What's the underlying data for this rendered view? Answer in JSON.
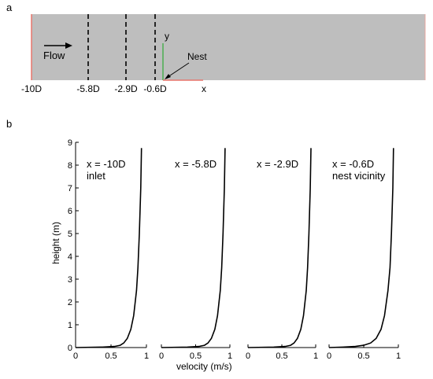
{
  "panel_a": {
    "label": "a",
    "flow_label": "Flow",
    "nest_label": "Nest",
    "axis_y_label": "y",
    "axis_x_label": "x",
    "colors": {
      "domain": "#bebebe",
      "dash": "#000000",
      "inlet": "#e8756b",
      "y_axis": "#4caf50",
      "x_axis": "#e8756b"
    },
    "sections": [
      {
        "id": "s1",
        "x_label": "-10D"
      },
      {
        "id": "s2",
        "x_label": "-5.8D"
      },
      {
        "id": "s3",
        "x_label": "-2.9D"
      },
      {
        "id": "s4",
        "x_label": "-0.6D"
      }
    ]
  },
  "panel_b": {
    "label": "b"
  },
  "chart_data": {
    "type": "line",
    "ylabel": "height (m)",
    "xlabel": "velocity (m/s)",
    "ylim": [
      0,
      9
    ],
    "yticks": [
      "0",
      "1",
      "2",
      "3",
      "4",
      "5",
      "6",
      "7",
      "8",
      "9"
    ],
    "xticks": [
      "0",
      "0.5",
      "1"
    ],
    "panels": [
      {
        "title_lines": [
          "x = -10D",
          "inlet"
        ],
        "xlim": [
          0,
          1
        ],
        "series": [
          {
            "x": [
              0,
              0.38,
              0.55,
              0.63,
              0.68,
              0.73,
              0.78,
              0.82,
              0.86,
              0.88,
              0.9,
              0.92,
              0.93
            ],
            "y": [
              0,
              0.02,
              0.05,
              0.1,
              0.2,
              0.4,
              0.8,
              1.4,
              2.5,
              3.5,
              5.0,
              7.0,
              8.75
            ]
          }
        ]
      },
      {
        "title_lines": [
          "x = -5.8D"
        ],
        "xlim": [
          0,
          1
        ],
        "series": [
          {
            "x": [
              0,
              0.38,
              0.55,
              0.63,
              0.68,
              0.73,
              0.78,
              0.82,
              0.86,
              0.88,
              0.9,
              0.92,
              0.93
            ],
            "y": [
              0,
              0.02,
              0.05,
              0.1,
              0.2,
              0.4,
              0.8,
              1.4,
              2.5,
              3.5,
              5.0,
              7.0,
              8.75
            ]
          }
        ]
      },
      {
        "title_lines": [
          "x = -2.9D"
        ],
        "xlim": [
          0,
          1
        ],
        "series": [
          {
            "x": [
              0,
              0.38,
              0.55,
              0.63,
              0.68,
              0.73,
              0.78,
              0.82,
              0.86,
              0.88,
              0.9,
              0.92,
              0.93
            ],
            "y": [
              0,
              0.02,
              0.05,
              0.1,
              0.2,
              0.4,
              0.8,
              1.4,
              2.5,
              3.5,
              5.0,
              7.0,
              8.75
            ]
          }
        ]
      },
      {
        "title_lines": [
          "x = -0.6D",
          "nest vicinity"
        ],
        "xlim": [
          0,
          1
        ],
        "series": [
          {
            "x": [
              0,
              0.2,
              0.38,
              0.5,
              0.6,
              0.68,
              0.75,
              0.8,
              0.85,
              0.88,
              0.9,
              0.92,
              0.93
            ],
            "y": [
              0,
              0.02,
              0.05,
              0.1,
              0.2,
              0.4,
              0.8,
              1.4,
              2.5,
              3.5,
              5.0,
              7.0,
              8.75
            ]
          }
        ]
      }
    ]
  }
}
